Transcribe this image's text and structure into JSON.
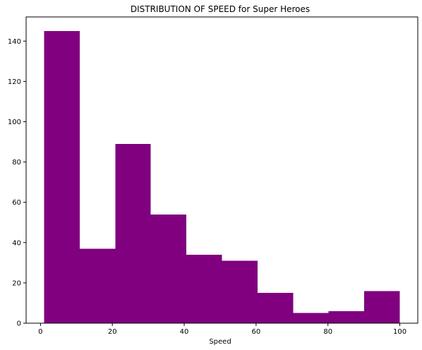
{
  "chart_data": {
    "type": "bar",
    "title": "DISTRIBUTION OF SPEED for Super Heroes",
    "xlabel": "Speed",
    "ylabel": "",
    "bins": [
      {
        "start": 1,
        "end": 10.9,
        "count": 145
      },
      {
        "start": 10.9,
        "end": 20.8,
        "count": 37
      },
      {
        "start": 20.8,
        "end": 30.7,
        "count": 89
      },
      {
        "start": 30.7,
        "end": 40.6,
        "count": 54
      },
      {
        "start": 40.6,
        "end": 50.5,
        "count": 34
      },
      {
        "start": 50.5,
        "end": 60.4,
        "count": 31
      },
      {
        "start": 60.4,
        "end": 70.3,
        "count": 15
      },
      {
        "start": 70.3,
        "end": 80.2,
        "count": 5
      },
      {
        "start": 80.2,
        "end": 90.1,
        "count": 6
      },
      {
        "start": 90.1,
        "end": 100,
        "count": 16
      }
    ],
    "xlim": [
      -4,
      105
    ],
    "ylim": [
      0,
      152
    ],
    "xticks": [
      0,
      20,
      40,
      60,
      80,
      100
    ],
    "yticks": [
      0,
      20,
      40,
      60,
      80,
      100,
      120,
      140
    ],
    "bar_color": "#800080",
    "grid": false
  }
}
